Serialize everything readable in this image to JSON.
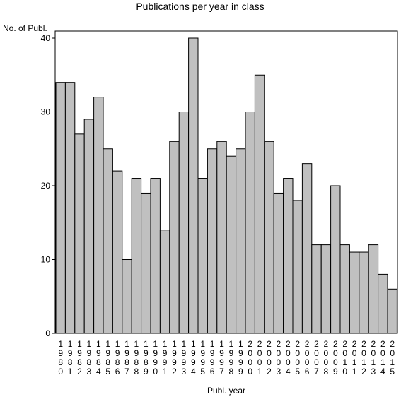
{
  "chart_data": {
    "type": "bar",
    "title": "Publications per year in class",
    "xlabel": "Publ. year",
    "ylabel": "No. of Publ.",
    "ylim": [
      0,
      40
    ],
    "yticks": [
      0,
      10,
      20,
      30,
      40
    ],
    "grid": false,
    "legend": "none",
    "bar_color": "#c0c0c0",
    "categories": [
      "1980",
      "1981",
      "1982",
      "1983",
      "1984",
      "1985",
      "1986",
      "1987",
      "1988",
      "1989",
      "1990",
      "1991",
      "1992",
      "1993",
      "1994",
      "1995",
      "1996",
      "1997",
      "1998",
      "1999",
      "2000",
      "2001",
      "2002",
      "2003",
      "2004",
      "2005",
      "2006",
      "2007",
      "2008",
      "2009",
      "2010",
      "2011",
      "2012",
      "2013",
      "2014",
      "2015"
    ],
    "values": [
      34,
      34,
      27,
      29,
      32,
      25,
      22,
      10,
      21,
      19,
      21,
      14,
      26,
      30,
      40,
      21,
      25,
      26,
      24,
      25,
      30,
      35,
      26,
      19,
      21,
      18,
      23,
      12,
      12,
      20,
      12,
      11,
      11,
      12,
      8,
      6
    ]
  }
}
